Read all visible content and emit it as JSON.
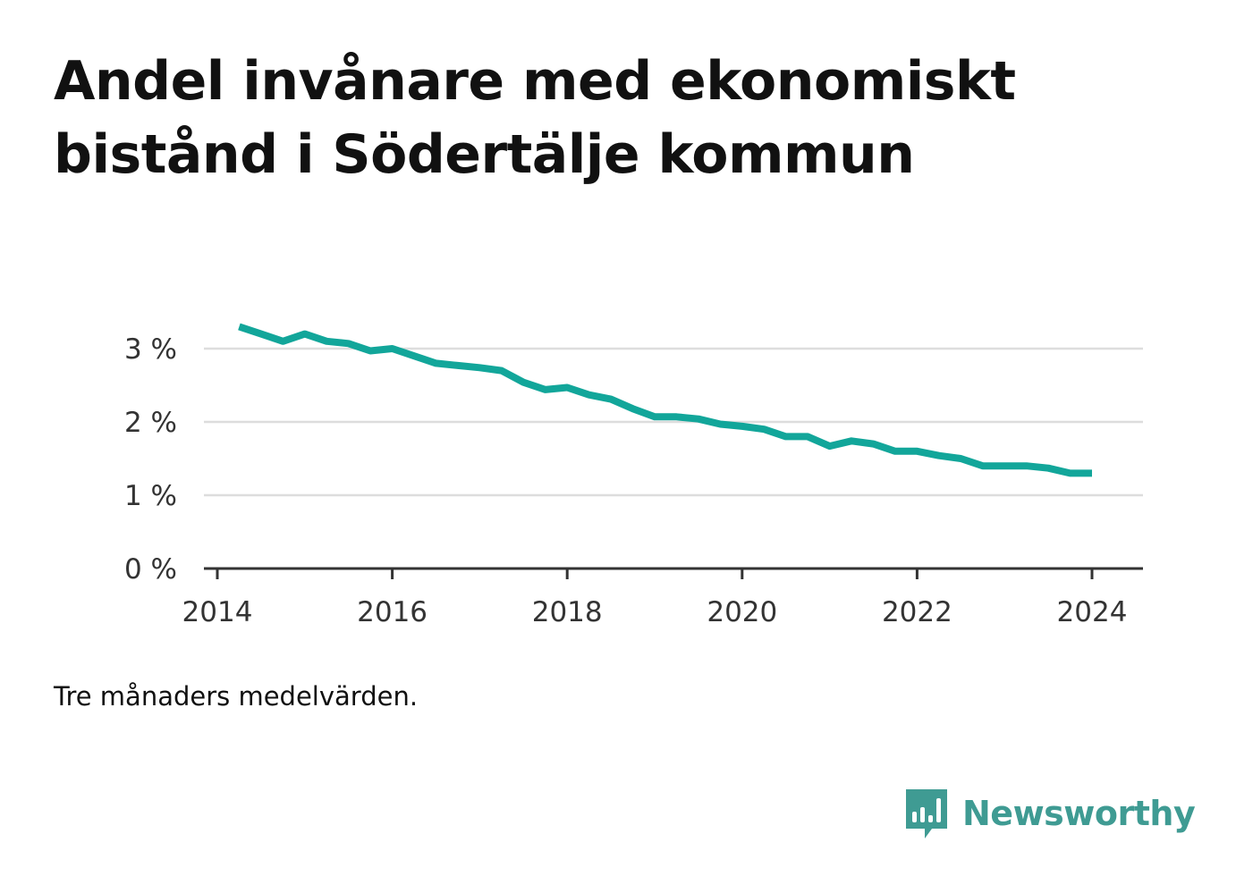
{
  "title": "Andel invånare med ekonomiskt bistånd i Södertälje kommun",
  "footnote": "Tre månaders medelvärden.",
  "brand": {
    "name": "Newsworthy",
    "color": "#3f9b93",
    "icon": "bar-chart-speech-bubble-icon"
  },
  "colors": {
    "line": "#12a69a",
    "grid": "#dddddd",
    "axis": "#333333"
  },
  "chart_data": {
    "type": "line",
    "title": "Andel invånare med ekonomiskt bistånd i Södertälje kommun",
    "xlabel": "",
    "ylabel": "",
    "xlim": [
      2014,
      2024.5
    ],
    "ylim": [
      0,
      3.4
    ],
    "grid": true,
    "x_ticks": [
      2014,
      2016,
      2018,
      2020,
      2022,
      2024
    ],
    "x_tick_labels": [
      "2014",
      "2016",
      "2018",
      "2020",
      "2022",
      "2024"
    ],
    "y_ticks": [
      0,
      1,
      2,
      3
    ],
    "y_tick_labels": [
      "0 %",
      "1 %",
      "2 %",
      "3 %"
    ],
    "series": [
      {
        "x": [
          "2014-04",
          "2014-07",
          "2014-10",
          "2015-01",
          "2015-04",
          "2015-07",
          "2015-10",
          "2016-01",
          "2016-04",
          "2016-07",
          "2016-10",
          "2017-01",
          "2017-04",
          "2017-07",
          "2017-10",
          "2018-01",
          "2018-04",
          "2018-07",
          "2018-10",
          "2019-01",
          "2019-04",
          "2019-07",
          "2019-10",
          "2020-01",
          "2020-04",
          "2020-07",
          "2020-10",
          "2021-01",
          "2021-04",
          "2021-07",
          "2021-10",
          "2022-01",
          "2022-04",
          "2022-07",
          "2022-10",
          "2023-01",
          "2023-04",
          "2023-07",
          "2023-10",
          "2024-01"
        ],
        "values": [
          3.3,
          3.2,
          3.1,
          3.2,
          3.1,
          3.07,
          2.97,
          3.0,
          2.9,
          2.8,
          2.77,
          2.74,
          2.7,
          2.54,
          2.44,
          2.47,
          2.37,
          2.31,
          2.18,
          2.07,
          2.07,
          2.04,
          1.97,
          1.94,
          1.9,
          1.8,
          1.8,
          1.67,
          1.74,
          1.7,
          1.6,
          1.6,
          1.54,
          1.5,
          1.4,
          1.4,
          1.4,
          1.37,
          1.3,
          1.3
        ]
      }
    ]
  }
}
